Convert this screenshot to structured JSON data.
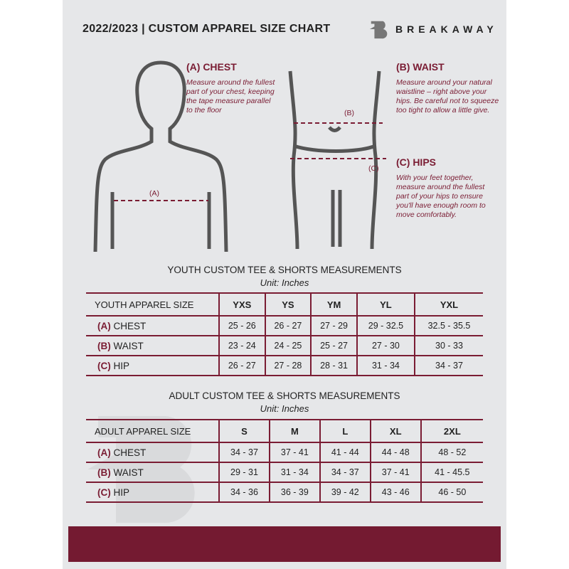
{
  "header": {
    "title": "2022/2023  |  CUSTOM APPAREL SIZE CHART",
    "brand": "BREAKAWAY"
  },
  "guide": {
    "chest": {
      "title": "(A) CHEST",
      "desc": "Measure around the fullest part of your chest, keeping the tape measure parallel to the floor",
      "marker": "(A)"
    },
    "waist": {
      "title": "(B) WAIST",
      "desc": "Measure around your natural waistline – right above your hips. Be careful not to squeeze too tight to allow a little give.",
      "marker": "(B)"
    },
    "hips": {
      "title": "(C) HIPS",
      "desc": "With your feet together, measure around the fullest part of your hips to ensure you'll have enough room to move comfortably.",
      "marker": "(C)"
    }
  },
  "youth": {
    "title": "YOUTH CUSTOM TEE & SHORTS MEASUREMENTS",
    "unit": "Unit: Inches",
    "size_label": "YOUTH APPAREL SIZE",
    "sizes": [
      "YXS",
      "YS",
      "YM",
      "YL",
      "YXL"
    ],
    "rows": [
      {
        "code": "(A)",
        "name": "CHEST",
        "values": [
          "25 - 26",
          "26 - 27",
          "27 - 29",
          "29 - 32.5",
          "32.5 - 35.5"
        ]
      },
      {
        "code": "(B)",
        "name": "WAIST",
        "values": [
          "23 - 24",
          "24 - 25",
          "25 - 27",
          "27 - 30",
          "30 - 33"
        ]
      },
      {
        "code": "(C)",
        "name": "HIP",
        "values": [
          "26 - 27",
          "27 - 28",
          "28 - 31",
          "31 - 34",
          "34 - 37"
        ]
      }
    ]
  },
  "adult": {
    "title": "ADULT CUSTOM TEE & SHORTS MEASUREMENTS",
    "unit": "Unit: Inches",
    "size_label": "ADULT APPAREL SIZE",
    "sizes": [
      "S",
      "M",
      "L",
      "XL",
      "2XL"
    ],
    "rows": [
      {
        "code": "(A)",
        "name": "CHEST",
        "values": [
          "34 - 37",
          "37 - 41",
          "41 - 44",
          "44 - 48",
          "48 - 52"
        ]
      },
      {
        "code": "(B)",
        "name": "WAIST",
        "values": [
          "29 - 31",
          "31 - 34",
          "34 - 37",
          "37 - 41",
          "41 - 45.5"
        ]
      },
      {
        "code": "(C)",
        "name": "HIP",
        "values": [
          "34 - 36",
          "36 - 39",
          "39 - 42",
          "43 - 46",
          "46 - 50"
        ]
      }
    ]
  },
  "colors": {
    "accent": "#7a1c33",
    "background": "#e6e7e9"
  }
}
